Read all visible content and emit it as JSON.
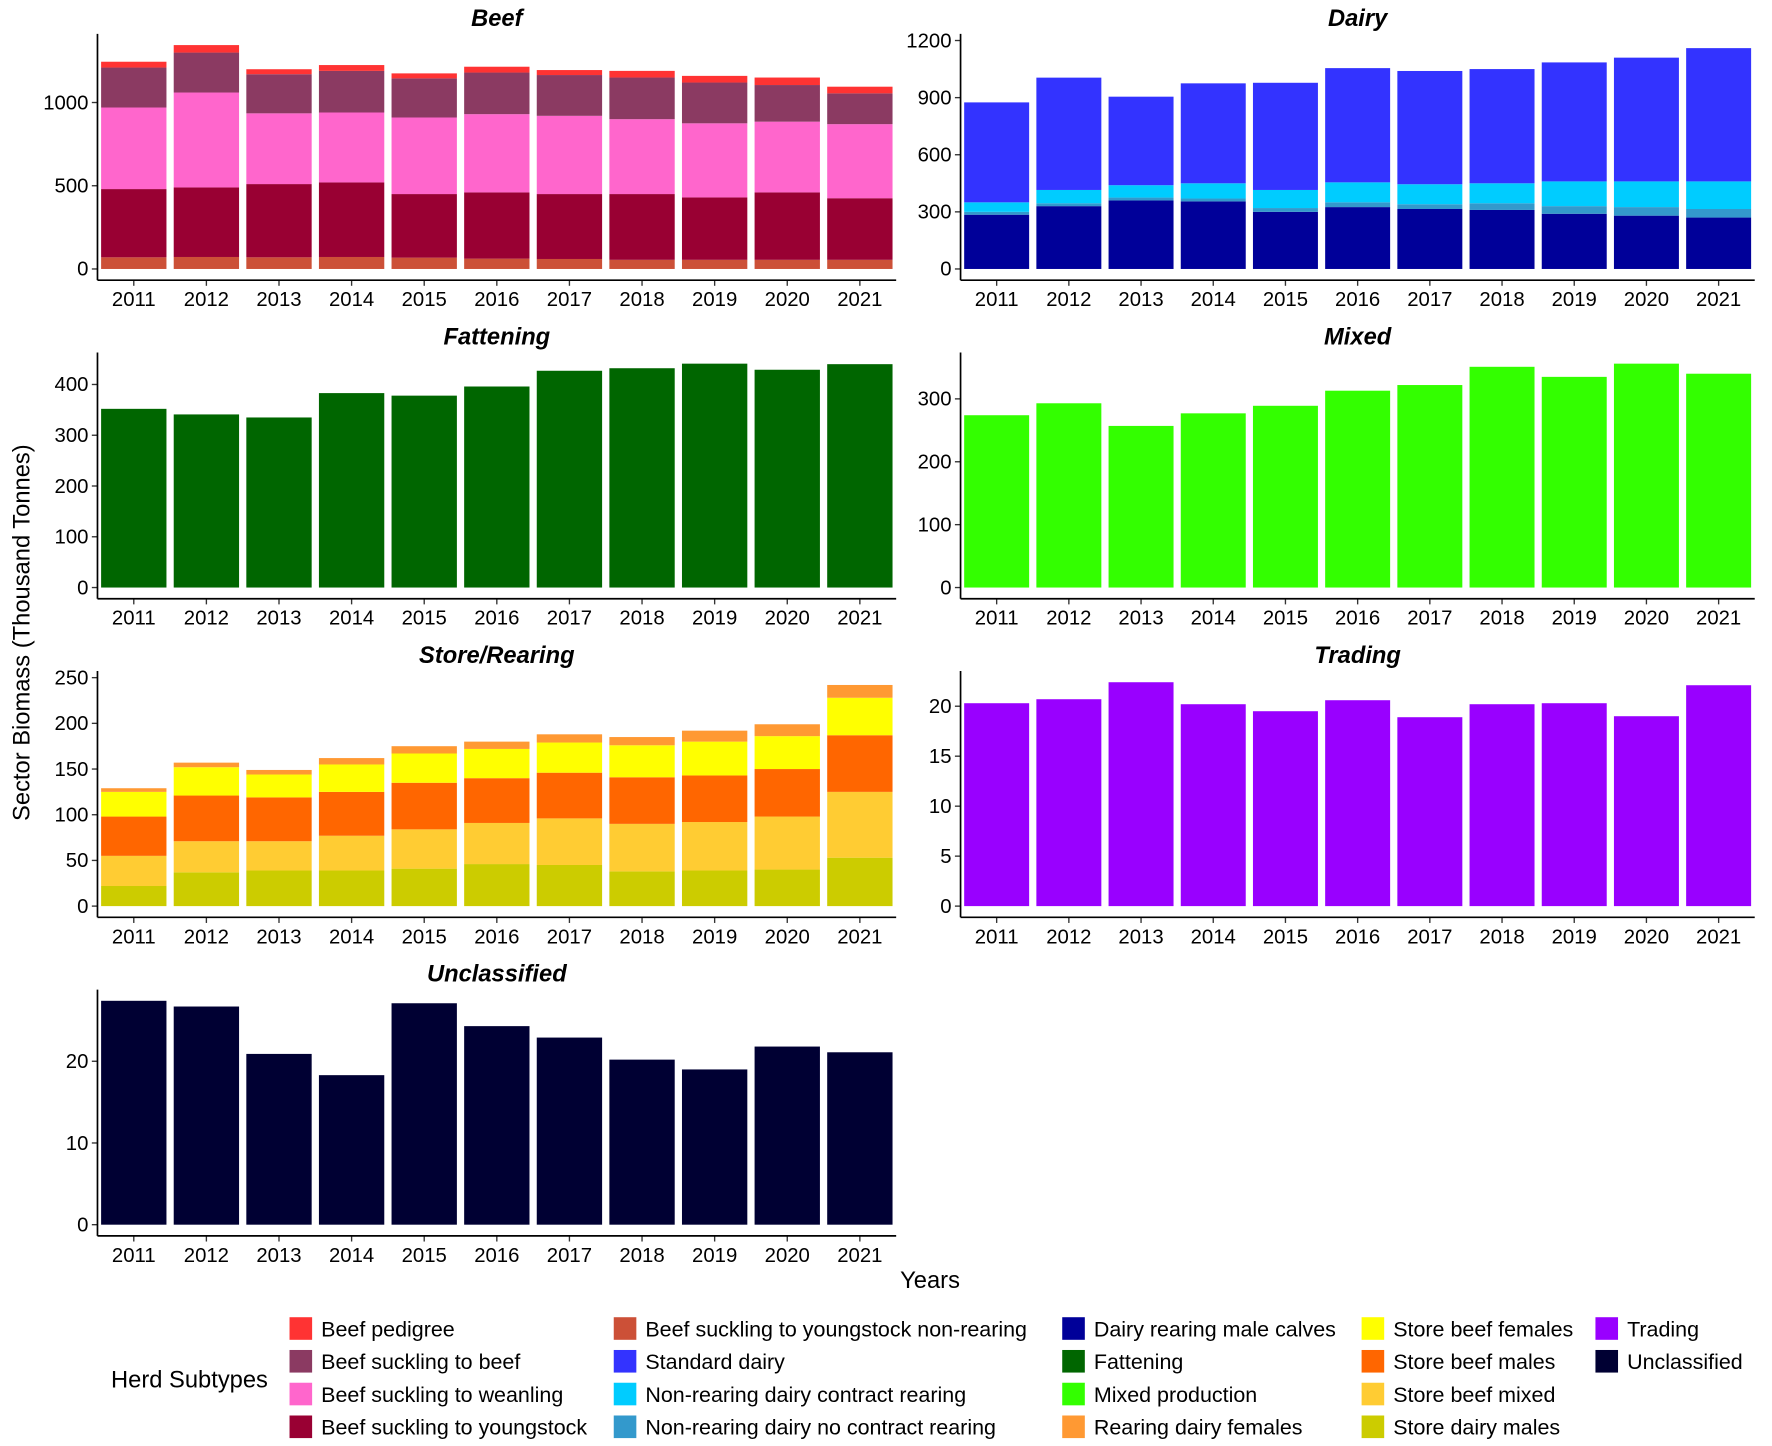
{
  "chart_data": {
    "type": "bar",
    "stacked": true,
    "xlabel": "Years",
    "ylabel": "Sector Biomass (Thousand Tonnes)",
    "categories": [
      "2011",
      "2012",
      "2013",
      "2014",
      "2015",
      "2016",
      "2017",
      "2018",
      "2019",
      "2020",
      "2021"
    ],
    "legend": {
      "title": "Herd Subtypes",
      "position": "bottom",
      "items": [
        {
          "name": "Beef pedigree",
          "color": "#FF3333"
        },
        {
          "name": "Beef suckling to beef",
          "color": "#8B3A62"
        },
        {
          "name": "Beef suckling to weanling",
          "color": "#FF66CC"
        },
        {
          "name": "Beef suckling to youngstock",
          "color": "#990033"
        },
        {
          "name": "Beef suckling to youngstock non-rearing",
          "color": "#CC5037"
        },
        {
          "name": "Standard dairy",
          "color": "#3333FF"
        },
        {
          "name": "Non-rearing dairy contract rearing",
          "color": "#00CCFF"
        },
        {
          "name": "Non-rearing dairy no contract rearing",
          "color": "#3399CC"
        },
        {
          "name": "Dairy rearing male calves",
          "color": "#000099"
        },
        {
          "name": "Fattening",
          "color": "#006600"
        },
        {
          "name": "Mixed production",
          "color": "#33FF00"
        },
        {
          "name": "Rearing dairy females",
          "color": "#FF9933"
        },
        {
          "name": "Store beef females",
          "color": "#FFFF00"
        },
        {
          "name": "Store beef males",
          "color": "#FF6600"
        },
        {
          "name": "Store beef mixed",
          "color": "#FFCC33"
        },
        {
          "name": "Store dairy males",
          "color": "#CCCC00"
        },
        {
          "name": "Trading",
          "color": "#9900FF"
        },
        {
          "name": "Unclassified",
          "color": "#000033"
        }
      ]
    },
    "panels": [
      {
        "title": "Beef",
        "yticks": [
          0,
          500,
          1000
        ],
        "series": [
          {
            "name": "Beef suckling to youngstock non-rearing",
            "values": [
              70,
              72,
              70,
              72,
              68,
              62,
              60,
              55,
              55,
              55,
              55
            ]
          },
          {
            "name": "Beef suckling to youngstock",
            "values": [
              410,
              418,
              440,
              448,
              382,
              398,
              390,
              395,
              375,
              405,
              370
            ]
          },
          {
            "name": "Beef suckling to weanling",
            "values": [
              490,
              570,
              425,
              420,
              460,
              470,
              470,
              450,
              445,
              425,
              445
            ]
          },
          {
            "name": "Beef suckling to beef",
            "values": [
              240,
              240,
              235,
              250,
              235,
              250,
              245,
              250,
              245,
              220,
              185
            ]
          },
          {
            "name": "Beef pedigree",
            "values": [
              35,
              45,
              30,
              35,
              30,
              35,
              30,
              40,
              40,
              45,
              40
            ]
          }
        ]
      },
      {
        "title": "Dairy",
        "yticks": [
          0,
          300,
          600,
          900,
          1200
        ],
        "series": [
          {
            "name": "Dairy rearing male calves",
            "values": [
              285,
              330,
              360,
              355,
              300,
              325,
              315,
              310,
              290,
              280,
              270
            ]
          },
          {
            "name": "Non-rearing dairy no contract rearing",
            "values": [
              15,
              15,
              15,
              15,
              20,
              25,
              25,
              35,
              40,
              45,
              45
            ]
          },
          {
            "name": "Non-rearing dairy contract rearing",
            "values": [
              50,
              70,
              65,
              80,
              95,
              105,
              105,
              105,
              130,
              135,
              145
            ]
          },
          {
            "name": "Standard dairy",
            "values": [
              525,
              590,
              465,
              525,
              563,
              600,
              595,
              600,
              625,
              650,
              700
            ]
          }
        ]
      },
      {
        "title": "Fattening",
        "yticks": [
          0,
          100,
          200,
          300,
          400
        ],
        "series": [
          {
            "name": "Fattening",
            "values": [
              352,
              341,
              335,
              383,
              378,
              396,
              427,
              432,
              441,
              429,
              440
            ]
          }
        ]
      },
      {
        "title": "Mixed",
        "yticks": [
          0,
          100,
          200,
          300
        ],
        "series": [
          {
            "name": "Mixed production",
            "values": [
              274,
              293,
              257,
              277,
              289,
              313,
              322,
              351,
              335,
              356,
              340
            ]
          }
        ]
      },
      {
        "title": "Store/Rearing",
        "yticks": [
          0,
          50,
          100,
          150,
          200,
          250
        ],
        "series": [
          {
            "name": "Store dairy males",
            "values": [
              22,
              37,
              39,
              39,
              41,
              46,
              45,
              38,
              39,
              40,
              53
            ]
          },
          {
            "name": "Store beef mixed",
            "values": [
              33,
              34,
              32,
              38,
              43,
              45,
              51,
              52,
              53,
              58,
              72
            ]
          },
          {
            "name": "Store beef males",
            "values": [
              43,
              50,
              48,
              48,
              51,
              49,
              50,
              51,
              51,
              52,
              62
            ]
          },
          {
            "name": "Store beef females",
            "values": [
              27,
              31,
              25,
              30,
              32,
              32,
              33,
              35,
              37,
              36,
              41
            ]
          },
          {
            "name": "Rearing dairy females",
            "values": [
              4,
              5,
              5,
              7,
              8,
              8,
              9,
              9,
              12,
              13,
              14
            ]
          }
        ]
      },
      {
        "title": "Trading",
        "yticks": [
          0,
          5,
          10,
          15,
          20
        ],
        "series": [
          {
            "name": "Trading",
            "values": [
              20.3,
              20.7,
              22.4,
              20.2,
              19.5,
              20.6,
              18.9,
              20.2,
              20.3,
              19.0,
              22.1
            ]
          }
        ]
      },
      {
        "title": "Unclassified",
        "yticks": [
          0,
          10,
          20
        ],
        "series": [
          {
            "name": "Unclassified",
            "values": [
              27.4,
              26.7,
              20.9,
              18.3,
              27.1,
              24.3,
              22.9,
              20.2,
              19.0,
              21.8,
              21.1
            ]
          }
        ]
      }
    ]
  }
}
